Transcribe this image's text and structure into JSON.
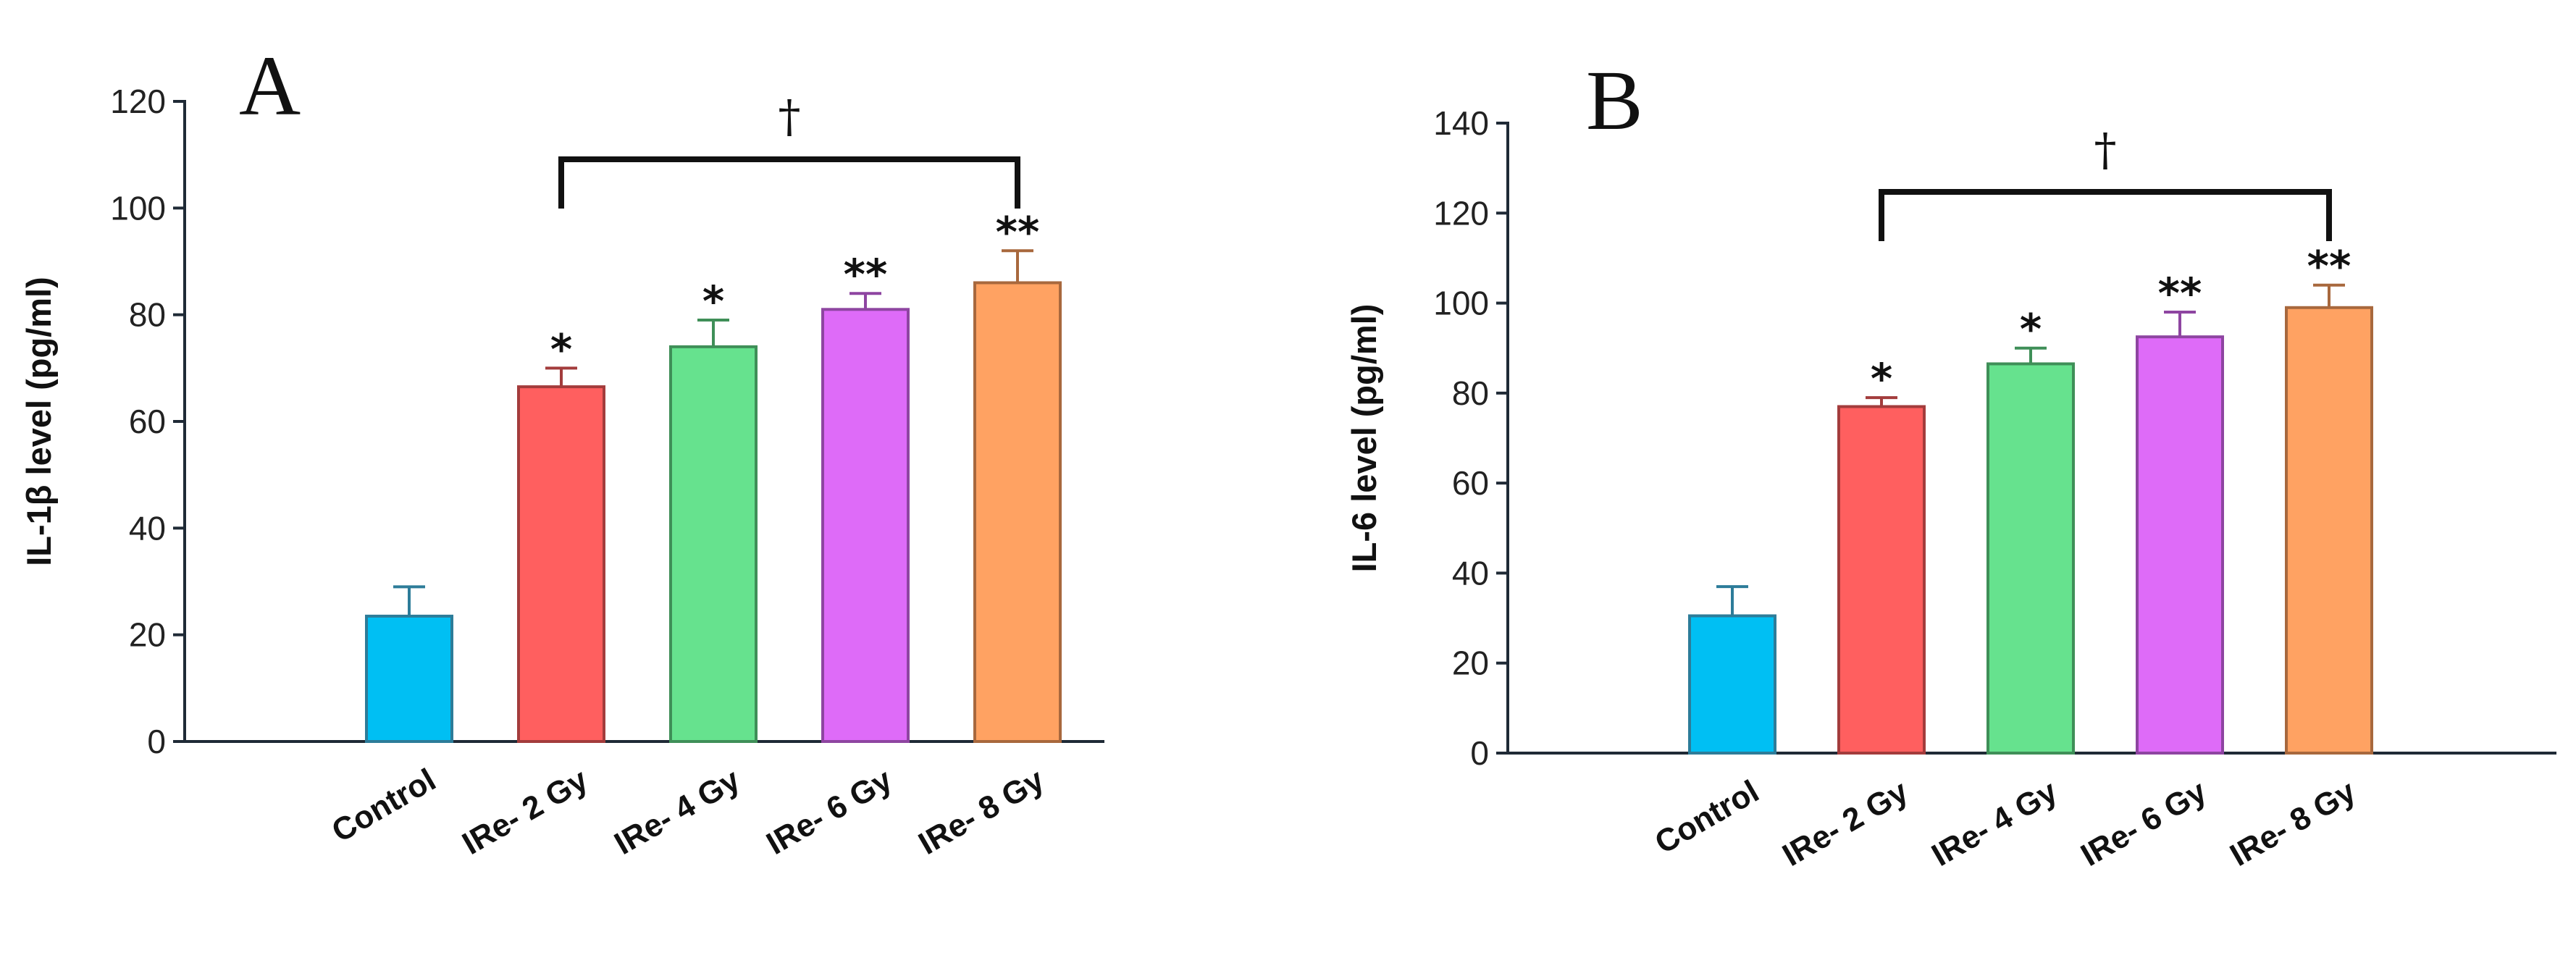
{
  "chart_data": [
    {
      "panel": "A",
      "type": "bar",
      "categories": [
        "Control",
        "IRe- 2 Gy",
        "IRe- 4 Gy",
        "IRe- 6 Gy",
        "IRe- 8 Gy"
      ],
      "values": [
        23.5,
        66.5,
        74,
        81,
        86
      ],
      "errors": [
        5.5,
        3.5,
        5,
        3,
        6
      ],
      "significance": [
        "",
        "*",
        "*",
        "**",
        "**"
      ],
      "bracket": {
        "from": "IRe- 2 Gy",
        "to": "IRe- 8 Gy",
        "label": "†"
      },
      "ylabel": "IL-1β level (pg/ml)",
      "xlabel": "",
      "ylim": [
        0,
        120
      ],
      "yticks": [
        0,
        20,
        40,
        60,
        80,
        100,
        120
      ],
      "colors": [
        "#00BFF3",
        "#FF5F5F",
        "#66E28E",
        "#DE6BF8",
        "#FFA262"
      ],
      "edge_colors": [
        "#2D7C99",
        "#A33C3C",
        "#3F8F58",
        "#8E45A1",
        "#A8683D"
      ]
    },
    {
      "panel": "B",
      "type": "bar",
      "categories": [
        "Control",
        "IRe- 2 Gy",
        "IRe- 4 Gy",
        "IRe- 6 Gy",
        "IRe- 8 Gy"
      ],
      "values": [
        30.5,
        77,
        86.5,
        92.5,
        99
      ],
      "errors": [
        6.5,
        2,
        3.5,
        5.5,
        5
      ],
      "significance": [
        "",
        "*",
        "*",
        "**",
        "**"
      ],
      "bracket": {
        "from": "IRe- 2 Gy",
        "to": "IRe- 8 Gy",
        "label": "†"
      },
      "ylabel": "IL-6 level (pg/ml)",
      "xlabel": "",
      "ylim": [
        0,
        140
      ],
      "yticks": [
        0,
        20,
        40,
        60,
        80,
        100,
        120,
        140
      ],
      "colors": [
        "#00BFF3",
        "#FF5F5F",
        "#66E28E",
        "#DE6BF8",
        "#FFA262"
      ],
      "edge_colors": [
        "#2D7C99",
        "#A33C3C",
        "#3F8F58",
        "#8E45A1",
        "#A8683D"
      ]
    }
  ]
}
